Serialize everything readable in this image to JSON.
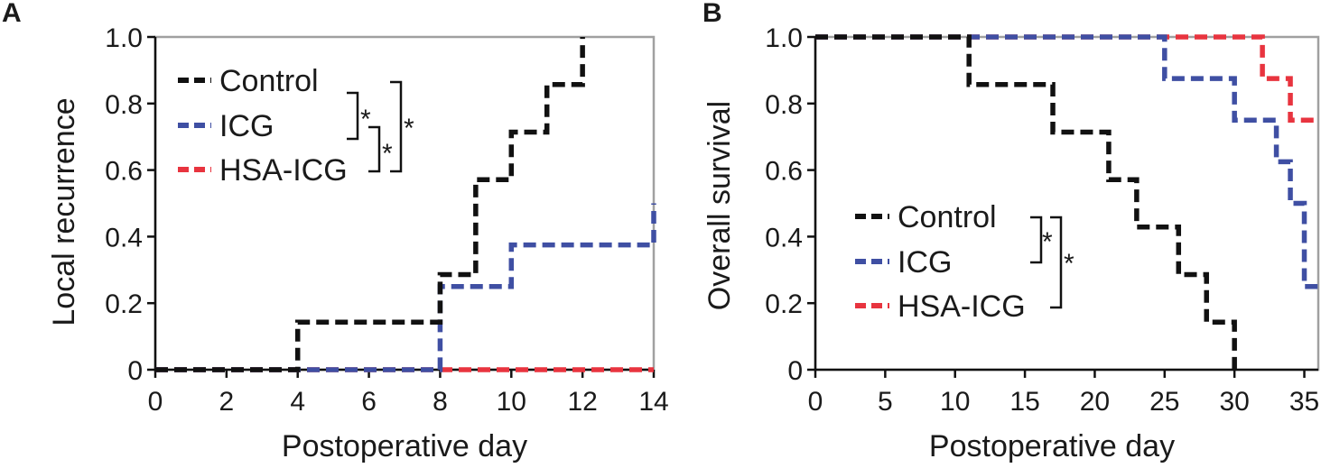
{
  "chart_data": [
    {
      "type": "line",
      "subtype": "step",
      "panel": "A",
      "title": "",
      "xlabel": "Postoperative day",
      "ylabel": "Local recurrence",
      "xlim": [
        0,
        14
      ],
      "ylim": [
        0,
        1.0
      ],
      "xticks": [
        "0",
        "2",
        "4",
        "6",
        "8",
        "10",
        "12",
        "14"
      ],
      "yticks": [
        "0",
        "0.2",
        "0.4",
        "0.6",
        "0.8",
        "1.0"
      ],
      "legend": [
        "Control",
        "ICG",
        "HSA-ICG"
      ],
      "legend_position": "top-left",
      "significance": [
        "*",
        "*",
        "*"
      ],
      "series": [
        {
          "name": "Control",
          "color": "#111111",
          "x": [
            0,
            4,
            8,
            9,
            10,
            11,
            12
          ],
          "y": [
            0,
            0.143,
            0.286,
            0.571,
            0.714,
            0.857,
            1.0
          ]
        },
        {
          "name": "ICG",
          "color": "#3f4fa3",
          "x": [
            0,
            8,
            10,
            14
          ],
          "y": [
            0,
            0.25,
            0.375,
            0.5
          ]
        },
        {
          "name": "HSA-ICG",
          "color": "#e8343f",
          "x": [
            0,
            14
          ],
          "y": [
            0,
            0
          ]
        }
      ]
    },
    {
      "type": "line",
      "subtype": "step",
      "panel": "B",
      "title": "",
      "xlabel": "Postoperative day",
      "ylabel": "Overall survival",
      "xlim": [
        0,
        36
      ],
      "ylim": [
        0,
        1.0
      ],
      "xticks": [
        "0",
        "5",
        "10",
        "15",
        "20",
        "25",
        "30",
        "35"
      ],
      "yticks": [
        "0",
        "0.2",
        "0.4",
        "0.6",
        "0.8",
        "1.0"
      ],
      "legend": [
        "Control",
        "ICG",
        "HSA-ICG"
      ],
      "legend_position": "bottom-center",
      "significance": [
        "*",
        "*"
      ],
      "series": [
        {
          "name": "Control",
          "color": "#111111",
          "x": [
            0,
            11,
            17,
            21,
            23,
            26,
            28,
            30
          ],
          "y": [
            1.0,
            0.857,
            0.714,
            0.571,
            0.429,
            0.286,
            0.143,
            0
          ]
        },
        {
          "name": "ICG",
          "color": "#3f4fa3",
          "x": [
            0,
            25,
            30,
            33,
            34,
            35
          ],
          "y": [
            1.0,
            0.875,
            0.75,
            0.625,
            0.5,
            0.25
          ]
        },
        {
          "name": "HSA-ICG",
          "color": "#e8343f",
          "x": [
            0,
            25,
            32,
            34
          ],
          "y": [
            1.0,
            1.0,
            0.875,
            0.75
          ]
        }
      ]
    }
  ]
}
